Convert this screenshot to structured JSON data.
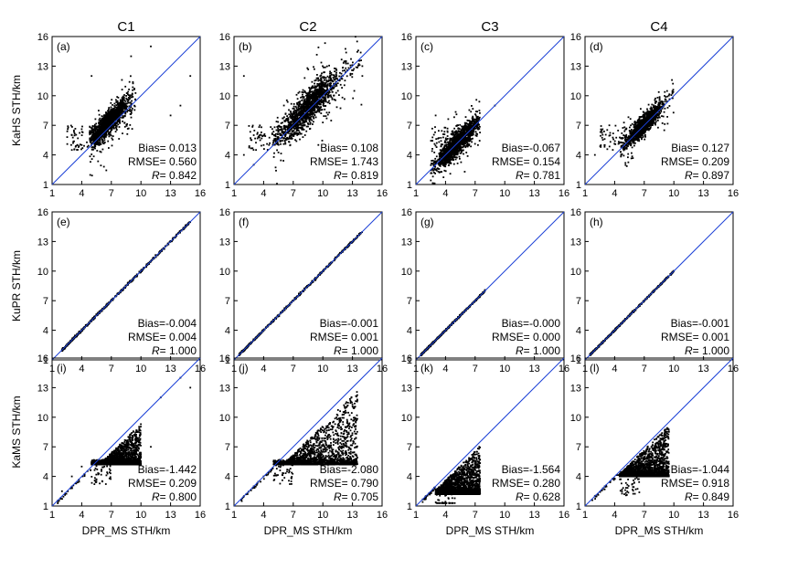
{
  "figure": {
    "column_titles": [
      "C1",
      "C2",
      "C3",
      "C4"
    ],
    "row_ylabels": [
      "KaHS STH/km",
      "KuPR STH/km",
      "KaMS STH/km"
    ],
    "xlabel": "DPR_MS STH/km"
  },
  "chart_data": [
    {
      "type": "scatter",
      "panel_label": "(a)",
      "column": "C1",
      "ylabel": "KaHS STH/km",
      "xlabel": "",
      "xlim": [
        1,
        16
      ],
      "ylim": [
        1,
        16
      ],
      "xticks": [
        "1",
        "4",
        "7",
        "10",
        "13",
        "16"
      ],
      "yticks": [
        "1",
        "4",
        "7",
        "10",
        "13",
        "16"
      ],
      "stats": {
        "bias": "Bias= 0.013",
        "rmse": "RMSE= 0.560",
        "r_value": "= 0.842"
      },
      "one_to_one_line": true,
      "series": [
        {
          "pattern": "kahs",
          "center": [
            6.7,
            7.3
          ],
          "spread": 0.9,
          "slope": 1.0,
          "range": [
            4.8,
            9.5
          ],
          "min_y": 4.5,
          "outliers": [
            [
              3,
              6
            ],
            [
              4,
              5
            ],
            [
              13,
              8
            ],
            [
              15,
              12
            ],
            [
              11,
              15
            ],
            [
              9,
              14
            ],
            [
              5,
              12
            ],
            [
              3,
              4.5
            ],
            [
              14,
              9
            ]
          ]
        }
      ]
    },
    {
      "type": "scatter",
      "panel_label": "(b)",
      "column": "C2",
      "ylabel": "KaHS STH/km",
      "xlabel": "",
      "xlim": [
        1,
        16
      ],
      "ylim": [
        1,
        16
      ],
      "xticks": [
        "1",
        "4",
        "7",
        "10",
        "13",
        "16"
      ],
      "yticks": [
        "1",
        "4",
        "7",
        "10",
        "13",
        "16"
      ],
      "stats": {
        "bias": "Bias= 0.108",
        "rmse": "RMSE= 1.743",
        "r_value": "= 0.819"
      },
      "one_to_one_line": true,
      "series": [
        {
          "pattern": "kahs",
          "center": [
            8.5,
            8.8
          ],
          "spread": 1.4,
          "slope": 1.0,
          "range": [
            5,
            14
          ],
          "min_y": 5,
          "outliers": [
            [
              2,
              12
            ],
            [
              3,
              6
            ],
            [
              4,
              5
            ],
            [
              14,
              13
            ],
            [
              14,
              12
            ],
            [
              2,
              4
            ],
            [
              3,
              3
            ]
          ]
        }
      ]
    },
    {
      "type": "scatter",
      "panel_label": "(c)",
      "column": "C3",
      "ylabel": "KaHS STH/km",
      "xlabel": "",
      "xlim": [
        1,
        16
      ],
      "ylim": [
        1,
        16
      ],
      "xticks": [
        "1",
        "4",
        "7",
        "10",
        "13",
        "16"
      ],
      "yticks": [
        "1",
        "4",
        "7",
        "10",
        "13",
        "16"
      ],
      "stats": {
        "bias": "Bias=-0.067",
        "rmse": "RMSE= 0.154",
        "r_value": "= 0.781"
      },
      "one_to_one_line": true,
      "series": [
        {
          "pattern": "kahs",
          "center": [
            5.2,
            5.2
          ],
          "spread": 0.9,
          "slope": 1.0,
          "range": [
            2.5,
            7.5
          ],
          "min_y": 2,
          "outliers": [
            [
              9,
              9
            ],
            [
              3,
              8
            ]
          ]
        }
      ]
    },
    {
      "type": "scatter",
      "panel_label": "(d)",
      "column": "C4",
      "ylabel": "KaHS STH/km",
      "xlabel": "",
      "xlim": [
        1,
        16
      ],
      "ylim": [
        1,
        16
      ],
      "xticks": [
        "1",
        "4",
        "7",
        "10",
        "13",
        "16"
      ],
      "yticks": [
        "1",
        "4",
        "7",
        "10",
        "13",
        "16"
      ],
      "stats": {
        "bias": "Bias= 0.127",
        "rmse": "RMSE= 0.209",
        "r_value": "= 0.897"
      },
      "one_to_one_line": true,
      "series": [
        {
          "pattern": "kahs",
          "center": [
            7,
            7.1
          ],
          "spread": 0.7,
          "slope": 1.0,
          "range": [
            4.5,
            10
          ],
          "min_y": 4,
          "outliers": [
            [
              2,
              4
            ],
            [
              3,
              5
            ]
          ]
        }
      ]
    },
    {
      "type": "scatter",
      "panel_label": "(e)",
      "column": "C1",
      "ylabel": "KuPR STH/km",
      "xlabel": "",
      "xlim": [
        1,
        16
      ],
      "ylim": [
        1,
        16
      ],
      "xticks": [
        "1",
        "4",
        "7",
        "10",
        "13",
        "16"
      ],
      "yticks": [
        "1",
        "4",
        "7",
        "10",
        "13",
        "16"
      ],
      "stats": {
        "bias": "Bias=-0.004",
        "rmse": "RMSE= 0.004",
        "r_value": "= 1.000"
      },
      "one_to_one_line": true,
      "series": [
        {
          "pattern": "diag",
          "range": [
            2,
            15
          ],
          "spread": 0.06
        }
      ]
    },
    {
      "type": "scatter",
      "panel_label": "(f)",
      "column": "C2",
      "ylabel": "KuPR STH/km",
      "xlabel": "",
      "xlim": [
        1,
        16
      ],
      "ylim": [
        1,
        16
      ],
      "xticks": [
        "1",
        "4",
        "7",
        "10",
        "13",
        "16"
      ],
      "yticks": [
        "1",
        "4",
        "7",
        "10",
        "13",
        "16"
      ],
      "stats": {
        "bias": "Bias=-0.001",
        "rmse": "RMSE= 0.001",
        "r_value": "= 1.000"
      },
      "one_to_one_line": true,
      "series": [
        {
          "pattern": "diag",
          "range": [
            1.5,
            14
          ],
          "spread": 0.05
        }
      ]
    },
    {
      "type": "scatter",
      "panel_label": "(g)",
      "column": "C3",
      "ylabel": "KuPR STH/km",
      "xlabel": "",
      "xlim": [
        1,
        16
      ],
      "ylim": [
        1,
        16
      ],
      "xticks": [
        "1",
        "4",
        "7",
        "10",
        "13",
        "16"
      ],
      "yticks": [
        "1",
        "4",
        "7",
        "10",
        "13",
        "16"
      ],
      "stats": {
        "bias": "Bias=-0.000",
        "rmse": "RMSE= 0.000",
        "r_value": "= 1.000"
      },
      "one_to_one_line": true,
      "series": [
        {
          "pattern": "diag",
          "range": [
            1.5,
            8
          ],
          "spread": 0.04
        }
      ]
    },
    {
      "type": "scatter",
      "panel_label": "(h)",
      "column": "C4",
      "ylabel": "KuPR STH/km",
      "xlabel": "",
      "xlim": [
        1,
        16
      ],
      "ylim": [
        1,
        16
      ],
      "xticks": [
        "1",
        "4",
        "7",
        "10",
        "13",
        "16"
      ],
      "yticks": [
        "1",
        "4",
        "7",
        "10",
        "13",
        "16"
      ],
      "stats": {
        "bias": "Bias=-0.001",
        "rmse": "RMSE= 0.001",
        "r_value": "= 1.000"
      },
      "one_to_one_line": true,
      "series": [
        {
          "pattern": "diag",
          "range": [
            1.5,
            10
          ],
          "spread": 0.04
        }
      ]
    },
    {
      "type": "scatter",
      "panel_label": "(i)",
      "column": "C1",
      "ylabel": "KaMS STH/km",
      "xlabel": "DPR_MS STH/km",
      "xlim": [
        1,
        16
      ],
      "ylim": [
        1,
        16
      ],
      "xticks": [
        "1",
        "4",
        "7",
        "10",
        "13",
        "16"
      ],
      "yticks": [
        "1",
        "4",
        "7",
        "10",
        "13",
        "16"
      ],
      "stats": {
        "bias": "Bias=-1.442",
        "rmse": "RMSE= 0.209",
        "r_value": "= 0.800"
      },
      "one_to_one_line": true,
      "series": [
        {
          "pattern": "kams",
          "x_range": [
            5,
            10
          ],
          "floor": 5.2,
          "gap": 0.6,
          "outliers": [
            [
              12,
              12
            ],
            [
              14,
              14
            ],
            [
              15,
              13
            ],
            [
              11,
              7
            ],
            [
              10,
              6
            ],
            [
              3,
              4
            ],
            [
              4,
              5
            ],
            [
              2,
              2.5
            ]
          ]
        }
      ]
    },
    {
      "type": "scatter",
      "panel_label": "(j)",
      "column": "C2",
      "ylabel": "KaMS STH/km",
      "xlabel": "DPR_MS STH/km",
      "xlim": [
        1,
        16
      ],
      "ylim": [
        1,
        16
      ],
      "xticks": [
        "1",
        "4",
        "7",
        "10",
        "13",
        "16"
      ],
      "yticks": [
        "1",
        "4",
        "7",
        "10",
        "13",
        "16"
      ],
      "stats": {
        "bias": "Bias=-2.080",
        "rmse": "RMSE= 0.790",
        "r_value": "= 0.705"
      },
      "one_to_one_line": true,
      "series": [
        {
          "pattern": "kams",
          "x_range": [
            5,
            13.5
          ],
          "floor": 5.2,
          "gap": 0.8,
          "outliers": [
            [
              3,
              3
            ],
            [
              4,
              4
            ],
            [
              2,
              2
            ]
          ]
        }
      ]
    },
    {
      "type": "scatter",
      "panel_label": "(k)",
      "column": "C3",
      "ylabel": "KaMS STH/km",
      "xlabel": "DPR_MS STH/km",
      "xlim": [
        1,
        16
      ],
      "ylim": [
        1,
        16
      ],
      "xticks": [
        "1",
        "4",
        "7",
        "10",
        "13",
        "16"
      ],
      "yticks": [
        "1",
        "4",
        "7",
        "10",
        "13",
        "16"
      ],
      "stats": {
        "bias": "Bias=-1.564",
        "rmse": "RMSE= 0.280",
        "r_value": "= 0.628"
      },
      "one_to_one_line": true,
      "series": [
        {
          "pattern": "kams",
          "x_range": [
            3,
            7.5
          ],
          "floor": 2.2,
          "gap": 0.4,
          "outliers": [
            [
              2,
              2
            ]
          ]
        }
      ]
    },
    {
      "type": "scatter",
      "panel_label": "(l)",
      "column": "C4",
      "ylabel": "KaMS STH/km",
      "xlabel": "DPR_MS STH/km",
      "xlim": [
        1,
        16
      ],
      "ylim": [
        1,
        16
      ],
      "xticks": [
        "1",
        "4",
        "7",
        "10",
        "13",
        "16"
      ],
      "yticks": [
        "1",
        "4",
        "7",
        "10",
        "13",
        "16"
      ],
      "stats": {
        "bias": "Bias=-1.044",
        "rmse": "RMSE= 0.918",
        "r_value": "= 0.849"
      },
      "one_to_one_line": true,
      "series": [
        {
          "pattern": "kams",
          "x_range": [
            4.5,
            9.5
          ],
          "floor": 4,
          "gap": 0.3,
          "outliers": [
            [
              2,
              2
            ],
            [
              3,
              3
            ]
          ]
        }
      ]
    }
  ],
  "colors": {
    "identity_line": "#1a3fd6",
    "points": "#000000"
  }
}
